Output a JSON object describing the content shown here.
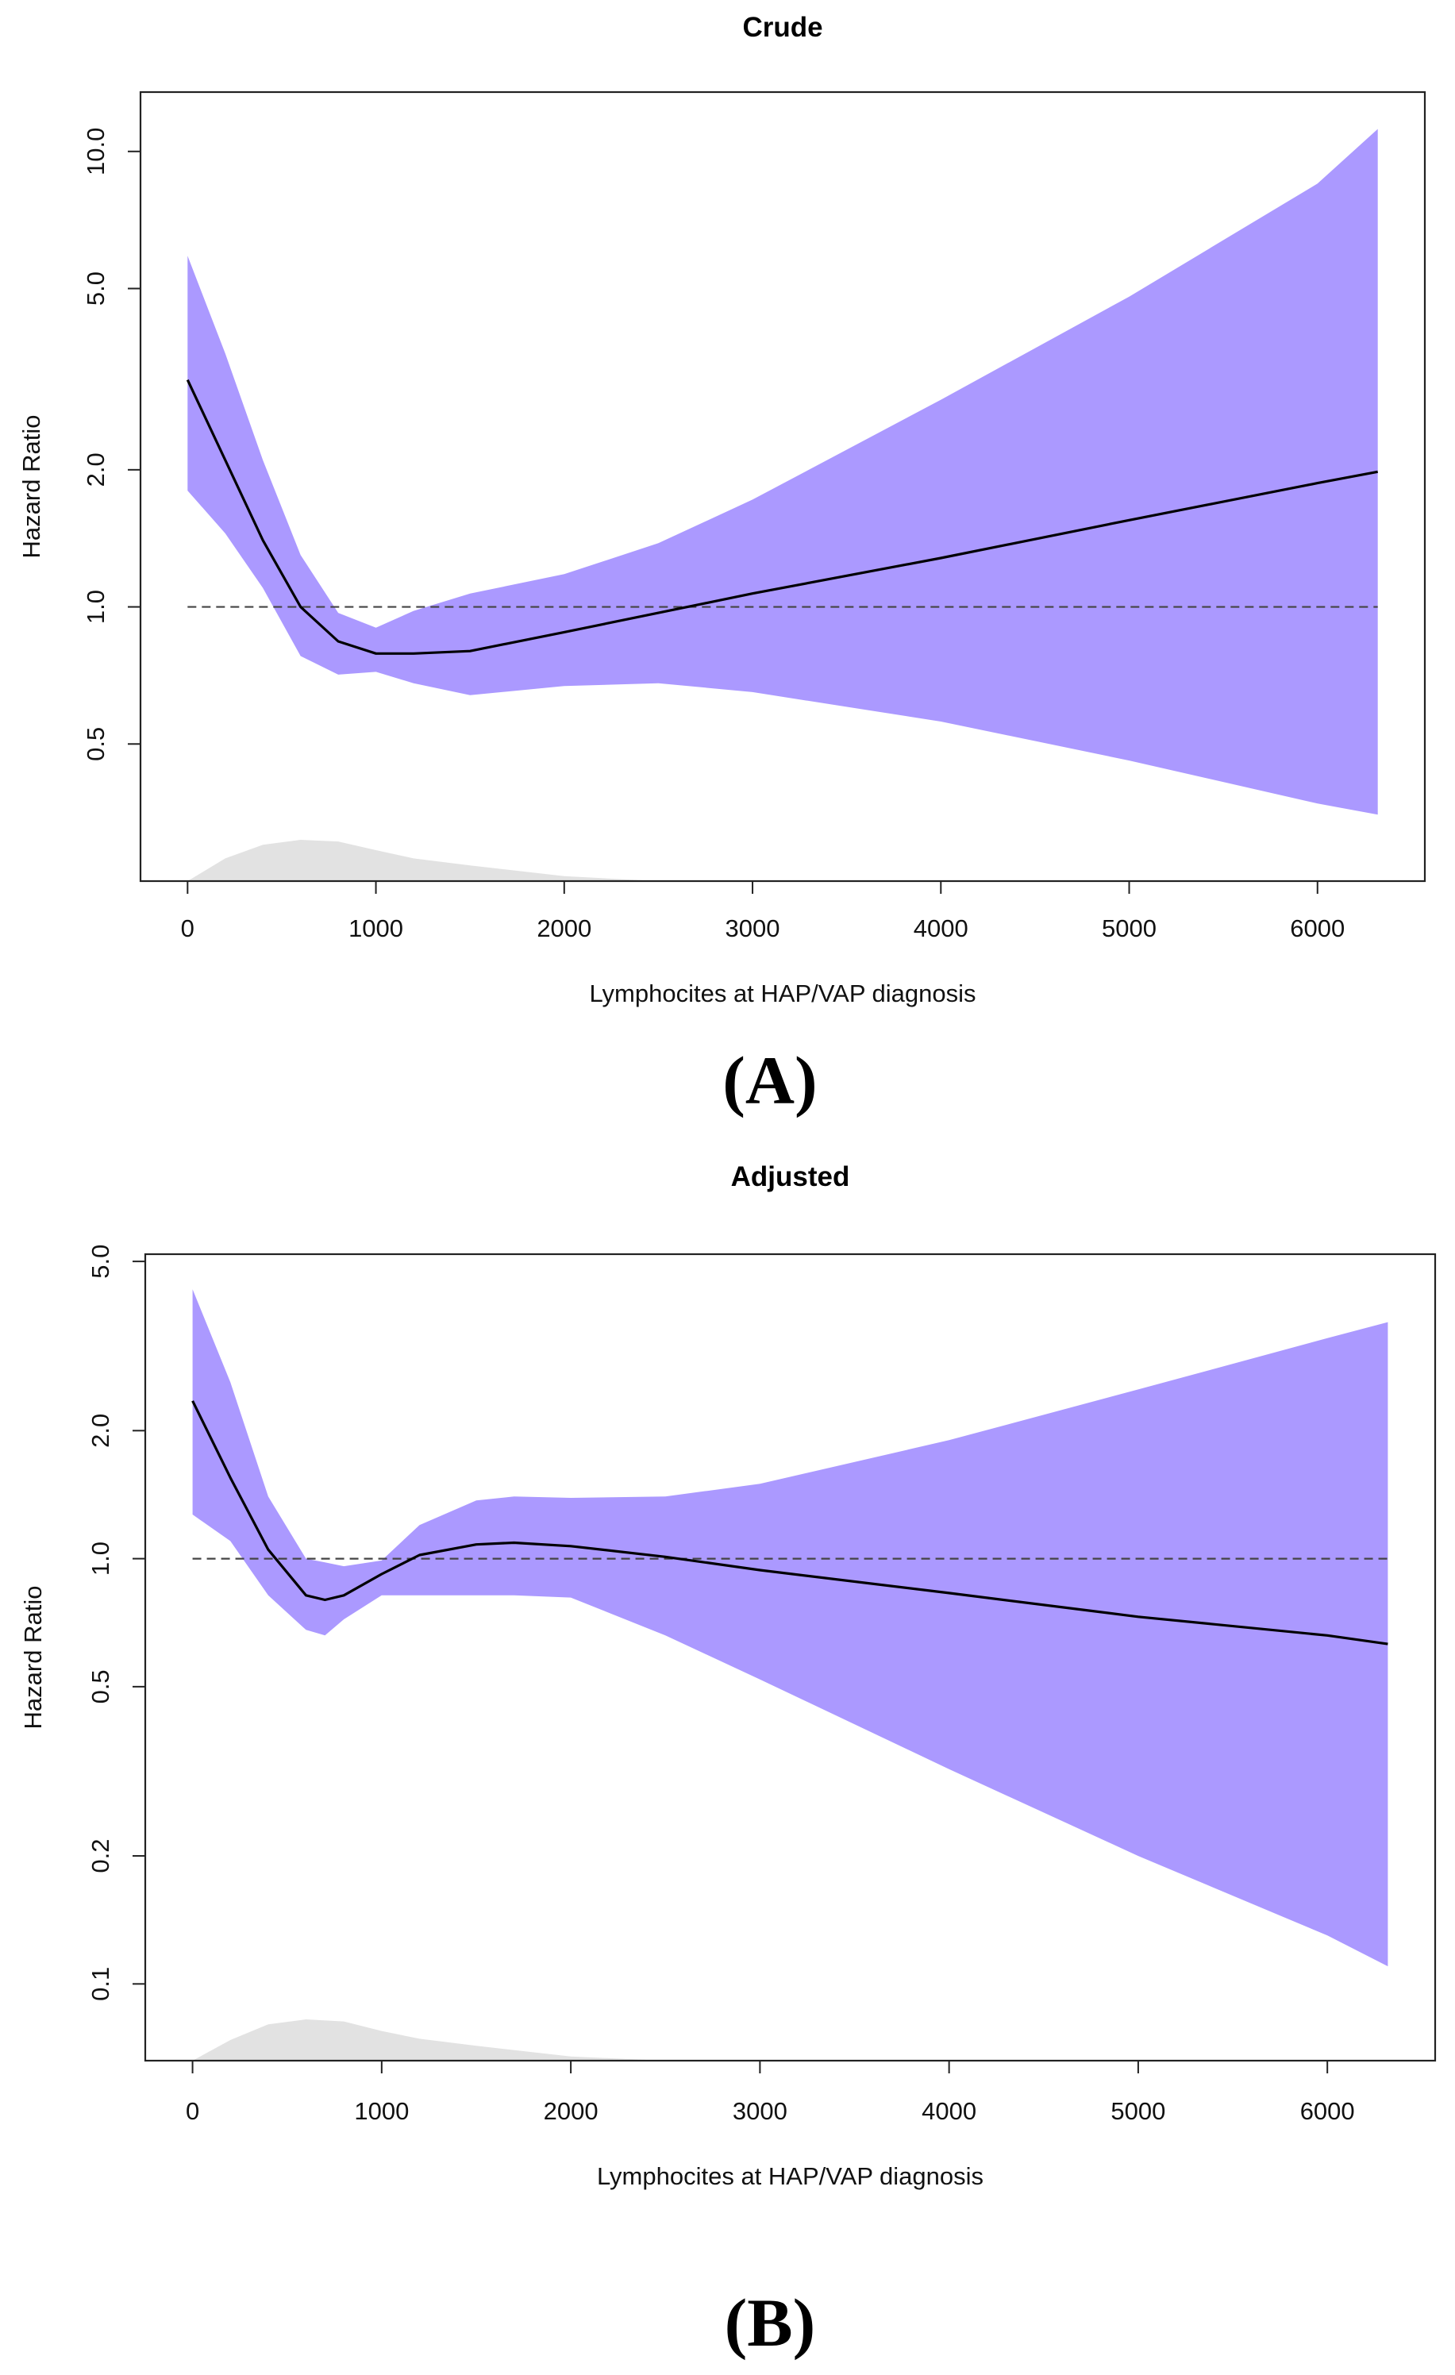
{
  "colors": {
    "band": "#ab99ff",
    "curve": "#000000",
    "reference": "#444444",
    "density": "#e2e2e2",
    "axis": "#222222"
  },
  "chart_data": [
    {
      "type": "line",
      "panel_label": "(A)",
      "title": "Crude",
      "xlabel": "Lymphocites at HAP/VAP diagnosis",
      "ylabel": "Hazard Ratio",
      "y_scale": "log",
      "xlim": [
        -250,
        6570
      ],
      "ylim": [
        0.25,
        13.5
      ],
      "x_ticks": [
        0,
        1000,
        2000,
        3000,
        4000,
        5000,
        6000
      ],
      "x_tick_labels": [
        "0",
        "1000",
        "2000",
        "3000",
        "4000",
        "5000",
        "6000"
      ],
      "y_ticks": [
        0.5,
        1.0,
        2.0,
        5.0,
        10.0
      ],
      "y_tick_labels": [
        "0.5",
        "1.0",
        "2.0",
        "5.0",
        "10.0"
      ],
      "reference_line": 1.0,
      "grid": false,
      "x": [
        0,
        200,
        400,
        600,
        800,
        1000,
        1200,
        1500,
        2000,
        2500,
        3000,
        4000,
        5000,
        6000,
        6320
      ],
      "series": [
        {
          "role": "estimate",
          "values": [
            3.15,
            2.1,
            1.4,
            1.0,
            0.84,
            0.79,
            0.79,
            0.8,
            0.88,
            0.97,
            1.07,
            1.28,
            1.55,
            1.87,
            1.98
          ]
        },
        {
          "role": "upper",
          "values": [
            5.9,
            3.6,
            2.1,
            1.3,
            0.97,
            0.9,
            0.98,
            1.07,
            1.18,
            1.38,
            1.72,
            2.85,
            4.8,
            8.5,
            11.2
          ]
        },
        {
          "role": "lower",
          "values": [
            1.8,
            1.45,
            1.1,
            0.78,
            0.71,
            0.72,
            0.68,
            0.64,
            0.67,
            0.68,
            0.65,
            0.56,
            0.46,
            0.37,
            0.35
          ]
        }
      ],
      "density": {
        "x": [
          0,
          200,
          400,
          600,
          800,
          1000,
          1200,
          1500,
          2000,
          2500
        ],
        "values": [
          0.0,
          0.55,
          0.88,
          1.0,
          0.96,
          0.75,
          0.55,
          0.38,
          0.12,
          0.0
        ]
      }
    },
    {
      "type": "line",
      "panel_label": "(B)",
      "title": "Adjusted",
      "xlabel": "Lymphocites at HAP/VAP diagnosis",
      "ylabel": "Hazard Ratio",
      "y_scale": "log",
      "xlim": [
        -250,
        6570
      ],
      "ylim": [
        0.066,
        5.2
      ],
      "x_ticks": [
        0,
        1000,
        2000,
        3000,
        4000,
        5000,
        6000
      ],
      "x_tick_labels": [
        "0",
        "1000",
        "2000",
        "3000",
        "4000",
        "5000",
        "6000"
      ],
      "y_ticks": [
        0.1,
        0.2,
        0.5,
        1.0,
        2.0,
        5.0
      ],
      "y_tick_labels": [
        "0.1",
        "0.2",
        "0.5",
        "1.0",
        "2.0",
        "5.0"
      ],
      "reference_line": 1.0,
      "grid": false,
      "x": [
        0,
        200,
        400,
        600,
        700,
        800,
        1000,
        1200,
        1500,
        1700,
        2000,
        2500,
        3000,
        4000,
        5000,
        6000,
        6320
      ],
      "series": [
        {
          "role": "estimate",
          "values": [
            2.35,
            1.55,
            1.05,
            0.82,
            0.8,
            0.82,
            0.92,
            1.02,
            1.08,
            1.09,
            1.07,
            1.01,
            0.94,
            0.83,
            0.73,
            0.66,
            0.63
          ]
        },
        {
          "role": "upper",
          "values": [
            4.3,
            2.6,
            1.4,
            1.0,
            0.98,
            0.96,
            0.99,
            1.2,
            1.37,
            1.4,
            1.39,
            1.4,
            1.5,
            1.9,
            2.5,
            3.3,
            3.6
          ]
        },
        {
          "role": "lower",
          "values": [
            1.27,
            1.1,
            0.82,
            0.68,
            0.66,
            0.72,
            0.82,
            0.82,
            0.82,
            0.82,
            0.81,
            0.66,
            0.52,
            0.32,
            0.2,
            0.13,
            0.11
          ]
        }
      ],
      "density": {
        "x": [
          0,
          200,
          400,
          600,
          800,
          1000,
          1200,
          1500,
          2000,
          2500
        ],
        "values": [
          0.0,
          0.5,
          0.88,
          1.0,
          0.95,
          0.72,
          0.53,
          0.36,
          0.1,
          0.0
        ]
      }
    }
  ]
}
